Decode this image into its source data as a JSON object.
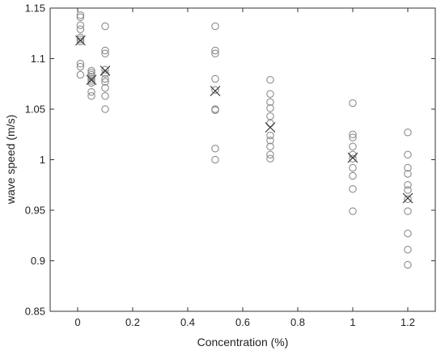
{
  "chart_data": {
    "type": "scatter",
    "title": "",
    "xlabel": "Concentration (%)",
    "ylabel": "wave speed (m/s)",
    "xlim": [
      -0.1,
      1.3
    ],
    "ylim": [
      0.85,
      1.15
    ],
    "xticks": [
      "0",
      "0.2",
      "0.4",
      "0.6",
      "0.8",
      "1",
      "1.2"
    ],
    "yticks": [
      "0.85",
      "0.9",
      "0.95",
      "1",
      "1.05",
      "1.1",
      "1.15"
    ],
    "grid": false,
    "legend": "none",
    "colors": {
      "points": "#8c8c8c",
      "means": "#333333",
      "axes": "#333333"
    },
    "series": [
      {
        "marker": "circle",
        "points": [
          [
            0.01,
            1.143
          ],
          [
            0.01,
            1.141
          ],
          [
            0.01,
            1.133
          ],
          [
            0.01,
            1.129
          ],
          [
            0.01,
            1.121
          ],
          [
            0.01,
            1.119
          ],
          [
            0.01,
            1.117
          ],
          [
            0.01,
            1.095
          ],
          [
            0.01,
            1.092
          ],
          [
            0.01,
            1.084
          ],
          [
            0.05,
            1.088
          ],
          [
            0.05,
            1.086
          ],
          [
            0.05,
            1.084
          ],
          [
            0.05,
            1.082
          ],
          [
            0.05,
            1.08
          ],
          [
            0.05,
            1.078
          ],
          [
            0.05,
            1.076
          ],
          [
            0.05,
            1.067
          ],
          [
            0.05,
            1.063
          ],
          [
            0.1,
            1.132
          ],
          [
            0.1,
            1.108
          ],
          [
            0.1,
            1.105
          ],
          [
            0.1,
            1.089
          ],
          [
            0.1,
            1.085
          ],
          [
            0.1,
            1.08
          ],
          [
            0.1,
            1.077
          ],
          [
            0.1,
            1.071
          ],
          [
            0.1,
            1.063
          ],
          [
            0.1,
            1.05
          ],
          [
            0.5,
            1.132
          ],
          [
            0.5,
            1.108
          ],
          [
            0.5,
            1.105
          ],
          [
            0.5,
            1.08
          ],
          [
            0.5,
            1.069
          ],
          [
            0.5,
            1.05
          ],
          [
            0.5,
            1.049
          ],
          [
            0.5,
            1.011
          ],
          [
            0.5,
            1.0
          ],
          [
            0.7,
            1.079
          ],
          [
            0.7,
            1.065
          ],
          [
            0.7,
            1.057
          ],
          [
            0.7,
            1.051
          ],
          [
            0.7,
            1.043
          ],
          [
            0.7,
            1.036
          ],
          [
            0.7,
            1.024
          ],
          [
            0.7,
            1.019
          ],
          [
            0.7,
            1.013
          ],
          [
            0.7,
            1.005
          ],
          [
            0.7,
            1.001
          ],
          [
            1.0,
            1.056
          ],
          [
            1.0,
            1.025
          ],
          [
            1.0,
            1.022
          ],
          [
            1.0,
            1.013
          ],
          [
            1.0,
            1.005
          ],
          [
            1.0,
            1.001
          ],
          [
            1.0,
            0.992
          ],
          [
            1.0,
            0.984
          ],
          [
            1.0,
            0.971
          ],
          [
            1.0,
            0.949
          ],
          [
            1.2,
            1.027
          ],
          [
            1.2,
            1.005
          ],
          [
            1.2,
            0.992
          ],
          [
            1.2,
            0.986
          ],
          [
            1.2,
            0.975
          ],
          [
            1.2,
            0.97
          ],
          [
            1.2,
            0.961
          ],
          [
            1.2,
            0.949
          ],
          [
            1.2,
            0.927
          ],
          [
            1.2,
            0.911
          ],
          [
            1.2,
            0.896
          ]
        ]
      },
      {
        "marker": "x",
        "points": [
          [
            0.01,
            1.118
          ],
          [
            0.05,
            1.079
          ],
          [
            0.1,
            1.088
          ],
          [
            0.5,
            1.068
          ],
          [
            0.7,
            1.032
          ],
          [
            1.0,
            1.002
          ],
          [
            1.2,
            0.962
          ]
        ]
      }
    ]
  }
}
